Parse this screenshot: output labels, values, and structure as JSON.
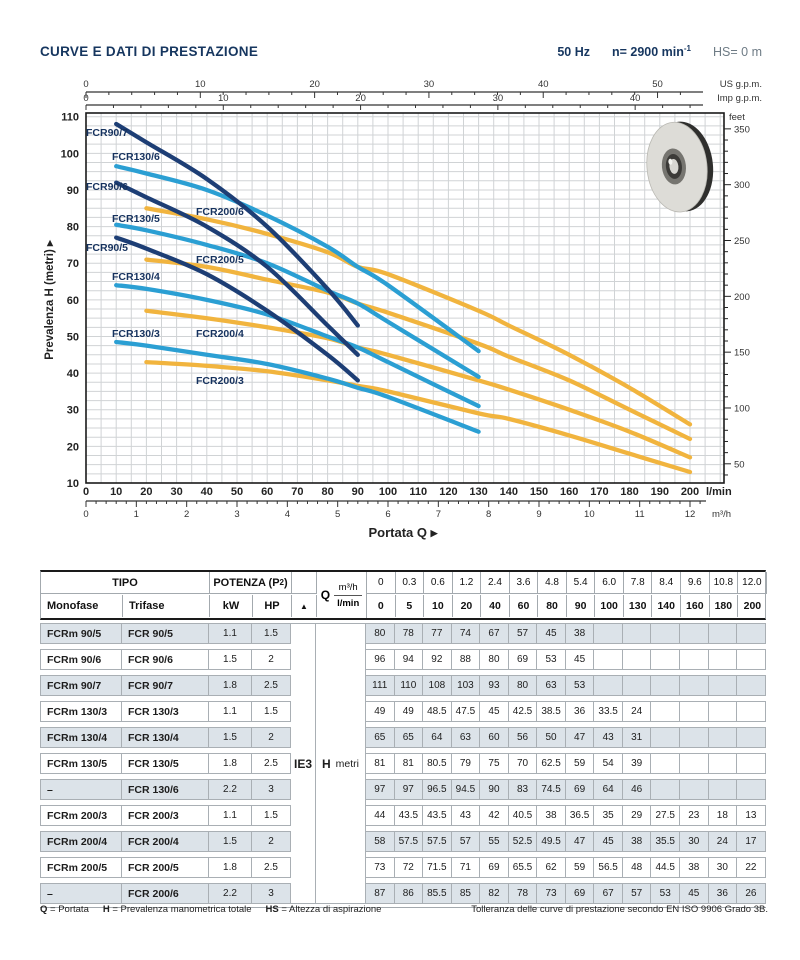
{
  "title": "CURVE E DATI DI PRESTAZIONE",
  "header_right": {
    "frequency": "50 Hz",
    "speed": "n= 2900 min",
    "speed_sup": "-1",
    "suction": "HS= 0 m"
  },
  "colors": {
    "navy": "#1d3e75",
    "blue": "#2b9fd3",
    "yellow": "#f1b43e",
    "curve_label": "#16325e",
    "title_navy": "#16365f",
    "grid": "#d0d3d5",
    "plot_border": "#1a1a1a",
    "table_shade": "#dce3e9",
    "table_border": "#a9afb4"
  },
  "chart_data": {
    "type": "line",
    "xlabel": "Portata Q",
    "impeller_icon": "pump-impeller-photo",
    "axes": {
      "us_gpm": {
        "unit": "US g.p.m.",
        "ticks": [
          0,
          10,
          20,
          30,
          40,
          50
        ]
      },
      "imp_gpm": {
        "unit": "Imp g.p.m.",
        "ticks": [
          0,
          10,
          20,
          30,
          40
        ]
      },
      "lmin": {
        "unit": "l/min",
        "ticks": [
          0,
          10,
          20,
          30,
          40,
          50,
          60,
          70,
          80,
          90,
          100,
          110,
          120,
          130,
          140,
          150,
          160,
          170,
          180,
          190,
          200
        ]
      },
      "m3h": {
        "unit": "m³/h",
        "ticks": [
          0,
          1,
          2,
          3,
          4,
          5,
          6,
          7,
          8,
          9,
          10,
          11,
          12
        ]
      },
      "meters": {
        "label": "Prevalenza H (metri)",
        "ticks": [
          10,
          20,
          30,
          40,
          50,
          60,
          70,
          80,
          90,
          100,
          110
        ]
      },
      "feet": {
        "unit": "feet",
        "ticks": [
          50,
          100,
          150,
          200,
          250,
          300,
          350
        ]
      }
    },
    "Q_lmin": [
      0,
      5,
      10,
      20,
      40,
      60,
      80,
      90,
      100,
      130,
      140,
      160,
      180,
      200
    ],
    "series": [
      {
        "name": "FCR 200/6",
        "label": "FCR200/6",
        "color": "yellow",
        "start_lmin": 20,
        "H": [
          87,
          86,
          85.5,
          85,
          82,
          78,
          73,
          69,
          67,
          57,
          53,
          45,
          36,
          26
        ],
        "label_xy": [
          196,
          215
        ]
      },
      {
        "name": "FCR 200/5",
        "label": "FCR200/5",
        "color": "yellow",
        "start_lmin": 20,
        "H": [
          73,
          72,
          71.5,
          71,
          69,
          65.5,
          62,
          59,
          56.5,
          48,
          44.5,
          38,
          30,
          22
        ],
        "label_xy": [
          196,
          263
        ]
      },
      {
        "name": "FCR 200/4",
        "label": "FCR200/4",
        "color": "yellow",
        "start_lmin": 20,
        "H": [
          58,
          57.5,
          57.5,
          57,
          55,
          52.5,
          49.5,
          47,
          45,
          38,
          35.5,
          30,
          24,
          17
        ],
        "label_xy": [
          196,
          337
        ]
      },
      {
        "name": "FCR 200/3",
        "label": "FCR200/3",
        "color": "yellow",
        "start_lmin": 20,
        "H": [
          44,
          43.5,
          43.5,
          43,
          42,
          40.5,
          38,
          36.5,
          35,
          29,
          27.5,
          23,
          18,
          13
        ],
        "label_xy": [
          196,
          384
        ]
      },
      {
        "name": "FCR 130/6",
        "label": "FCR130/6",
        "color": "blue",
        "start_lmin": 10,
        "H": [
          97,
          97,
          96.5,
          94.5,
          90,
          83,
          74.5,
          69,
          64,
          46
        ],
        "label_xy": [
          112,
          160
        ]
      },
      {
        "name": "FCR 130/5",
        "label": "FCR130/5",
        "color": "blue",
        "start_lmin": 10,
        "H": [
          81,
          81,
          80.5,
          79,
          75,
          70,
          62.5,
          59,
          54,
          39
        ],
        "label_xy": [
          112,
          222
        ]
      },
      {
        "name": "FCR 130/4",
        "label": "FCR130/4",
        "color": "blue",
        "start_lmin": 10,
        "H": [
          65,
          65,
          64,
          63,
          60,
          56,
          50,
          47,
          43,
          31
        ],
        "label_xy": [
          112,
          280
        ]
      },
      {
        "name": "FCR 130/3",
        "label": "FCR130/3",
        "color": "blue",
        "start_lmin": 10,
        "H": [
          49,
          49,
          48.5,
          47.5,
          45,
          42.5,
          38.5,
          36,
          33.5,
          24
        ],
        "label_xy": [
          112,
          337
        ]
      },
      {
        "name": "FCR 90/7",
        "label": "FCR90/7",
        "color": "navy",
        "start_lmin": 10,
        "H": [
          111,
          110,
          108,
          103,
          93,
          80,
          63,
          53
        ],
        "label_xy": [
          86,
          136
        ]
      },
      {
        "name": "FCR 90/6",
        "label": "FCR90/6",
        "color": "navy",
        "start_lmin": 10,
        "H": [
          96,
          94,
          92,
          88,
          80,
          69,
          53,
          45
        ],
        "label_xy": [
          86,
          190
        ]
      },
      {
        "name": "FCR 90/5",
        "label": "FCR90/5",
        "color": "navy",
        "start_lmin": 10,
        "H": [
          80,
          78,
          77,
          74,
          67,
          57,
          45,
          38
        ],
        "label_xy": [
          86,
          251
        ]
      }
    ]
  },
  "table": {
    "header": {
      "tipo": "TIPO",
      "monofase": "Monofase",
      "trifase": "Trifase",
      "potenza_pre": "POTENZA (P",
      "potenza_sub": "2",
      "potenza_post": ")",
      "kw": "kW",
      "hp": "HP",
      "triangle": "▲",
      "q": "Q",
      "m3h": "m³/h",
      "lmin": "l/min",
      "m3h_values": [
        "0",
        "0.3",
        "0.6",
        "1.2",
        "2.4",
        "3.6",
        "4.8",
        "5.4",
        "6.0",
        "7.8",
        "8.4",
        "9.6",
        "10.8",
        "12.0"
      ],
      "lmin_values": [
        "0",
        "5",
        "10",
        "20",
        "40",
        "60",
        "80",
        "90",
        "100",
        "130",
        "140",
        "160",
        "180",
        "200"
      ]
    },
    "ie3": "IE3",
    "h_label": "H",
    "h_unit": "metri",
    "rows": [
      {
        "monofase": "FCRm 90/5",
        "trifase": "FCR 90/5",
        "kw": "1.1",
        "hp": "1.5",
        "values": [
          "80",
          "78",
          "77",
          "74",
          "67",
          "57",
          "45",
          "38",
          "",
          "",
          "",
          "",
          "",
          ""
        ]
      },
      {
        "monofase": "FCRm 90/6",
        "trifase": "FCR 90/6",
        "kw": "1.5",
        "hp": "2",
        "values": [
          "96",
          "94",
          "92",
          "88",
          "80",
          "69",
          "53",
          "45",
          "",
          "",
          "",
          "",
          "",
          ""
        ]
      },
      {
        "monofase": "FCRm 90/7",
        "trifase": "FCR 90/7",
        "kw": "1.8",
        "hp": "2.5",
        "values": [
          "111",
          "110",
          "108",
          "103",
          "93",
          "80",
          "63",
          "53",
          "",
          "",
          "",
          "",
          "",
          ""
        ]
      },
      {
        "monofase": "FCRm 130/3",
        "trifase": "FCR 130/3",
        "kw": "1.1",
        "hp": "1.5",
        "values": [
          "49",
          "49",
          "48.5",
          "47.5",
          "45",
          "42.5",
          "38.5",
          "36",
          "33.5",
          "24",
          "",
          "",
          "",
          ""
        ]
      },
      {
        "monofase": "FCRm 130/4",
        "trifase": "FCR 130/4",
        "kw": "1.5",
        "hp": "2",
        "values": [
          "65",
          "65",
          "64",
          "63",
          "60",
          "56",
          "50",
          "47",
          "43",
          "31",
          "",
          "",
          "",
          ""
        ]
      },
      {
        "monofase": "FCRm 130/5",
        "trifase": "FCR 130/5",
        "kw": "1.8",
        "hp": "2.5",
        "values": [
          "81",
          "81",
          "80.5",
          "79",
          "75",
          "70",
          "62.5",
          "59",
          "54",
          "39",
          "",
          "",
          "",
          ""
        ]
      },
      {
        "monofase": "–",
        "trifase": "FCR 130/6",
        "kw": "2.2",
        "hp": "3",
        "values": [
          "97",
          "97",
          "96.5",
          "94.5",
          "90",
          "83",
          "74.5",
          "69",
          "64",
          "46",
          "",
          "",
          "",
          ""
        ]
      },
      {
        "monofase": "FCRm 200/3",
        "trifase": "FCR 200/3",
        "kw": "1.1",
        "hp": "1.5",
        "values": [
          "44",
          "43.5",
          "43.5",
          "43",
          "42",
          "40.5",
          "38",
          "36.5",
          "35",
          "29",
          "27.5",
          "23",
          "18",
          "13"
        ]
      },
      {
        "monofase": "FCRm 200/4",
        "trifase": "FCR 200/4",
        "kw": "1.5",
        "hp": "2",
        "values": [
          "58",
          "57.5",
          "57.5",
          "57",
          "55",
          "52.5",
          "49.5",
          "47",
          "45",
          "38",
          "35.5",
          "30",
          "24",
          "17"
        ]
      },
      {
        "monofase": "FCRm 200/5",
        "trifase": "FCR 200/5",
        "kw": "1.8",
        "hp": "2.5",
        "values": [
          "73",
          "72",
          "71.5",
          "71",
          "69",
          "65.5",
          "62",
          "59",
          "56.5",
          "48",
          "44.5",
          "38",
          "30",
          "22"
        ]
      },
      {
        "monofase": "–",
        "trifase": "FCR 200/6",
        "kw": "2.2",
        "hp": "3",
        "values": [
          "87",
          "86",
          "85.5",
          "85",
          "82",
          "78",
          "73",
          "69",
          "67",
          "57",
          "53",
          "45",
          "36",
          "26"
        ]
      }
    ]
  },
  "footnote": {
    "legend": [
      {
        "term": "Q",
        "def": "= Portata"
      },
      {
        "term": "H",
        "def": "= Prevalenza manometrica totale"
      },
      {
        "term": "HS",
        "def": "= Altezza di aspirazione"
      }
    ],
    "tolerance": "Tolleranza delle curve di prestazione secondo EN ISO 9906 Grado 3B."
  }
}
